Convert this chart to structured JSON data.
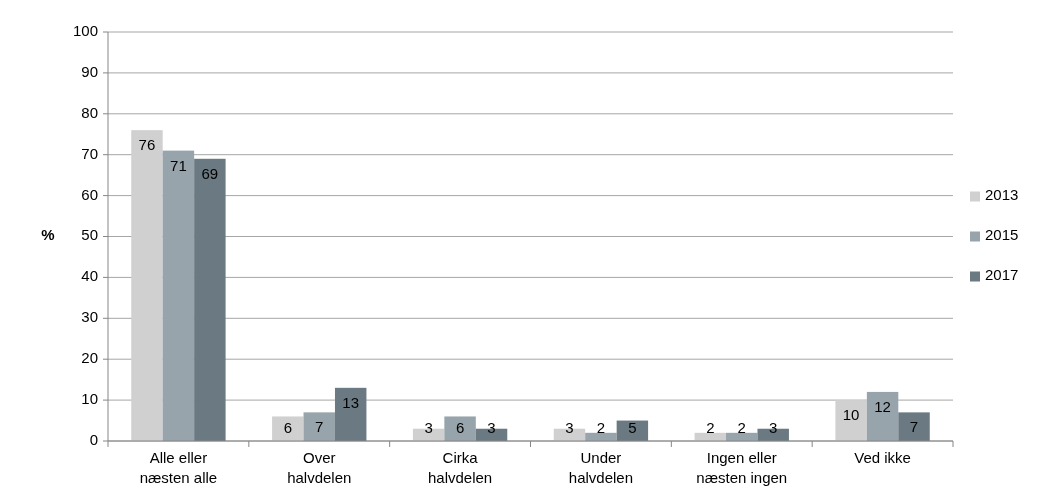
{
  "chart_data": {
    "type": "bar",
    "ylabel": "%",
    "categories": [
      "Alle eller næsten alle",
      "Over halvdelen",
      "Cirka halvdelen",
      "Under halvdelen",
      "Ingen eller næsten ingen",
      "Ved ikke"
    ],
    "series": [
      {
        "name": "2013",
        "color": "#d0d0d0",
        "values": [
          76,
          6,
          3,
          3,
          2,
          10
        ]
      },
      {
        "name": "2015",
        "color": "#98a4ab",
        "values": [
          71,
          7,
          6,
          2,
          2,
          12
        ]
      },
      {
        "name": "2017",
        "color": "#6b7a82",
        "values": [
          69,
          13,
          3,
          5,
          3,
          7
        ]
      }
    ],
    "ylim": [
      0,
      100
    ],
    "yticks": [
      0,
      10,
      20,
      30,
      40,
      50,
      60,
      70,
      80,
      90,
      100
    ],
    "grid": "y",
    "legend": "right",
    "data_labels": true
  }
}
